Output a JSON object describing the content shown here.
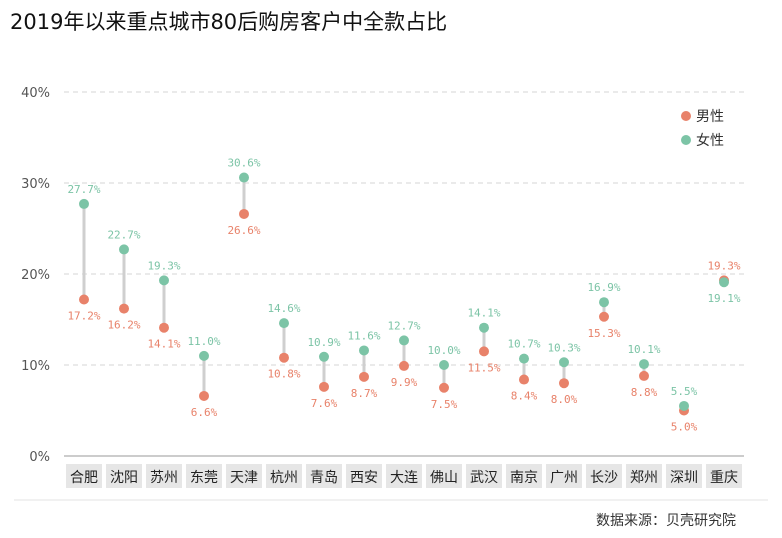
{
  "title": "2019年以来重点城市80后购房客户中全款占比",
  "source": "数据来源：贝壳研究院",
  "colors": {
    "male": "#e8826a",
    "female": "#7cc4a6",
    "connector": "#cfcfcf",
    "grid": "#d4d4d4",
    "category_band": "#e6e6e6"
  },
  "chart_data": {
    "type": "dumbbell",
    "title": "2019年以来重点城市80后购房客户中全款占比",
    "categories": [
      "合肥",
      "沈阳",
      "苏州",
      "东莞",
      "天津",
      "杭州",
      "青岛",
      "西安",
      "大连",
      "佛山",
      "武汉",
      "南京",
      "广州",
      "长沙",
      "郑州",
      "深圳",
      "重庆"
    ],
    "series": [
      {
        "name": "男性",
        "values": [
          17.2,
          16.2,
          14.1,
          6.6,
          26.6,
          10.8,
          7.6,
          8.7,
          9.9,
          7.5,
          11.5,
          8.4,
          8.0,
          15.3,
          8.8,
          5.0,
          19.3
        ]
      },
      {
        "name": "女性",
        "values": [
          27.7,
          22.7,
          19.3,
          11.0,
          30.6,
          14.6,
          10.9,
          11.6,
          12.7,
          10.0,
          14.1,
          10.7,
          10.3,
          16.9,
          10.1,
          5.5,
          19.1
        ]
      }
    ],
    "yticks": [
      "0%",
      "10%",
      "20%",
      "30%",
      "40%"
    ],
    "ylim": [
      0,
      40
    ],
    "grid": true,
    "legend": "top-right"
  }
}
